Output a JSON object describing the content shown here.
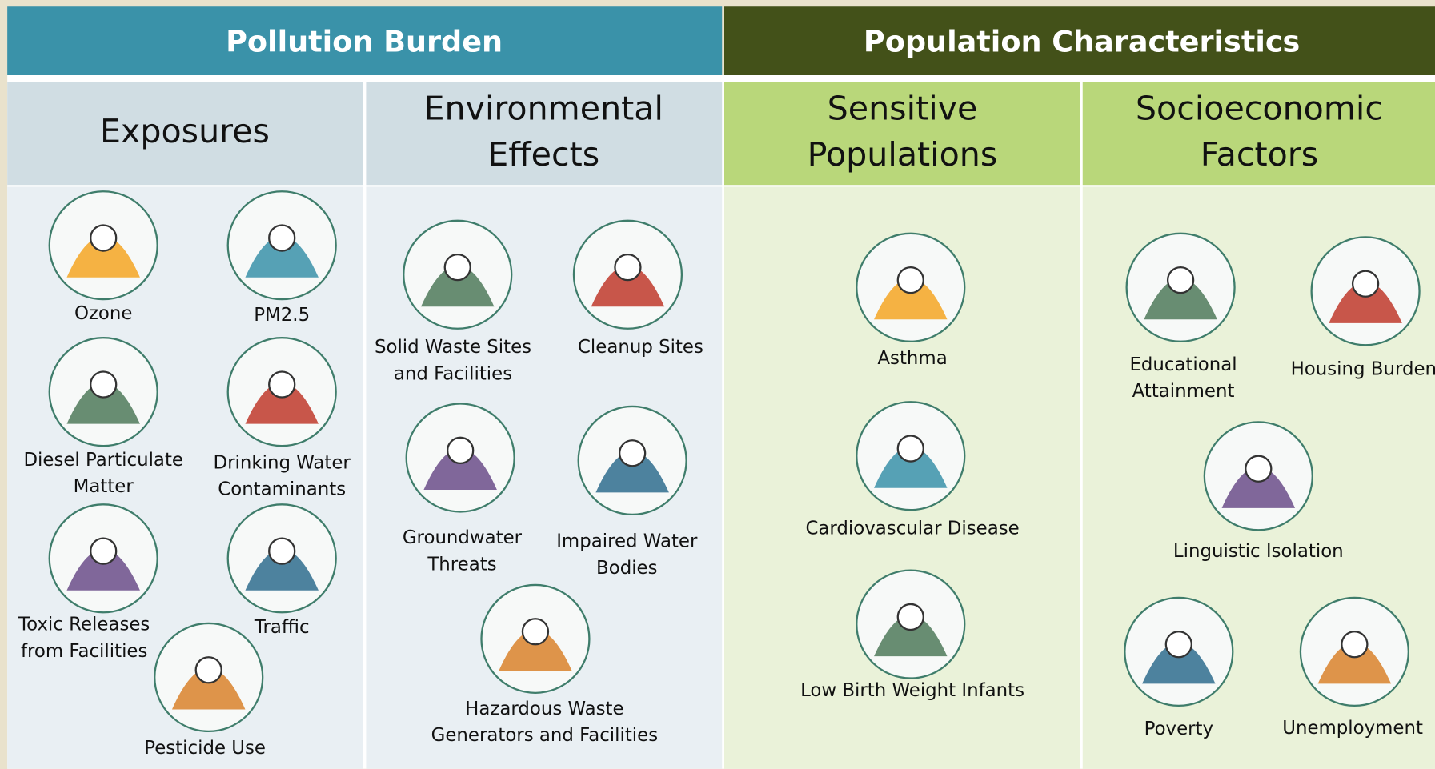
{
  "sections": [
    {
      "title": "Pollution Burden",
      "groups": [
        {
          "title": [
            "Exposures"
          ],
          "items": [
            {
              "label": [
                "Ozone"
              ]
            },
            {
              "label": [
                "PM2.5"
              ]
            },
            {
              "label": [
                "Diesel Particulate",
                "Matter"
              ]
            },
            {
              "label": [
                "Drinking Water",
                "Contaminants"
              ]
            },
            {
              "label": [
                "Toxic Releases",
                "from Facilities"
              ]
            },
            {
              "label": [
                "Traffic"
              ]
            },
            {
              "label": [
                "Pesticide Use"
              ]
            }
          ]
        },
        {
          "title": [
            "Environmental",
            "Effects"
          ],
          "items": [
            {
              "label": [
                "Solid Waste Sites",
                "and Facilities"
              ]
            },
            {
              "label": [
                "Cleanup Sites"
              ]
            },
            {
              "label": [
                "Groundwater",
                "Threats"
              ]
            },
            {
              "label": [
                "Impaired Water",
                "Bodies"
              ]
            },
            {
              "label": [
                "Hazardous Waste",
                "Generators and Facilities"
              ]
            }
          ]
        }
      ]
    },
    {
      "title": "Population Characteristics",
      "groups": [
        {
          "title": [
            "Sensitive",
            "Populations"
          ],
          "items": [
            {
              "label": [
                "Asthma"
              ]
            },
            {
              "label": [
                "Cardiovascular Disease"
              ]
            },
            {
              "label": [
                "Low Birth Weight Infants"
              ]
            }
          ]
        },
        {
          "title": [
            "Socioeconomic",
            "Factors"
          ],
          "items": [
            {
              "label": [
                "Educational",
                "Attainment"
              ]
            },
            {
              "label": [
                "Housing Burden"
              ]
            },
            {
              "label": [
                "Linguistic Isolation"
              ]
            },
            {
              "label": [
                "Poverty"
              ]
            },
            {
              "label": [
                "Unemployment"
              ]
            }
          ]
        }
      ]
    }
  ]
}
